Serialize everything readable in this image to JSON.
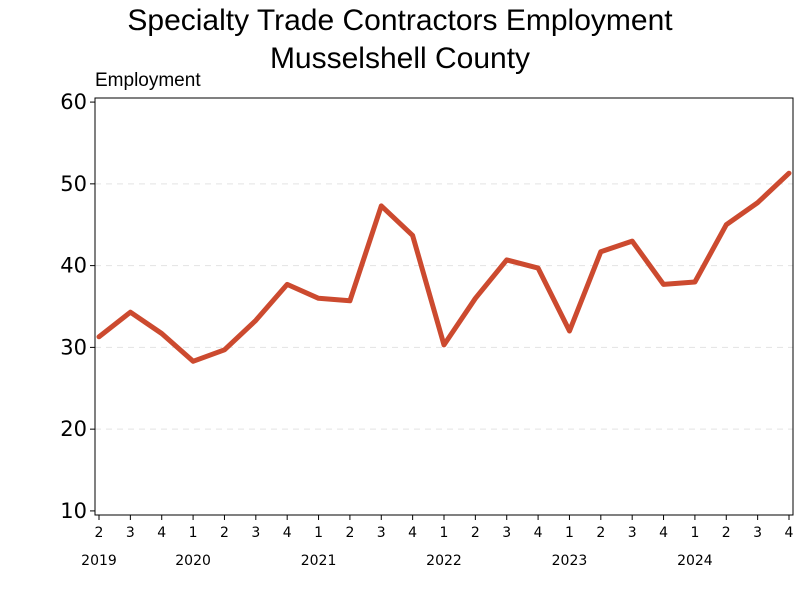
{
  "chart_data": {
    "type": "line",
    "title": [
      "Specialty Trade Contractors Employment",
      "Musselshell County"
    ],
    "ylabel": "Employment",
    "xlabel": "",
    "ylim": [
      9.5,
      60.5
    ],
    "yticks": [
      10,
      20,
      30,
      40,
      50,
      60
    ],
    "grid": "horizontal dashed",
    "line_color": "#cc4a2f",
    "x": [
      "2",
      "3",
      "4",
      "1",
      "2",
      "3",
      "4",
      "1",
      "2",
      "3",
      "4",
      "1",
      "2",
      "3",
      "4",
      "1",
      "2",
      "3",
      "4",
      "1",
      "2",
      "3",
      "4"
    ],
    "years": [
      {
        "label": "2019",
        "index": 0
      },
      {
        "label": "2020",
        "index": 3
      },
      {
        "label": "2021",
        "index": 7
      },
      {
        "label": "2022",
        "index": 11
      },
      {
        "label": "2023",
        "index": 15
      },
      {
        "label": "2024",
        "index": 19
      }
    ],
    "series": [
      {
        "values": [
          31.3,
          34.3,
          31.7,
          28.3,
          29.7,
          33.3,
          37.7,
          36.0,
          35.7,
          47.3,
          43.7,
          30.3,
          36.0,
          40.7,
          39.7,
          32.0,
          41.7,
          43.0,
          37.7,
          38.0,
          45.0,
          47.7,
          51.3
        ]
      }
    ]
  }
}
